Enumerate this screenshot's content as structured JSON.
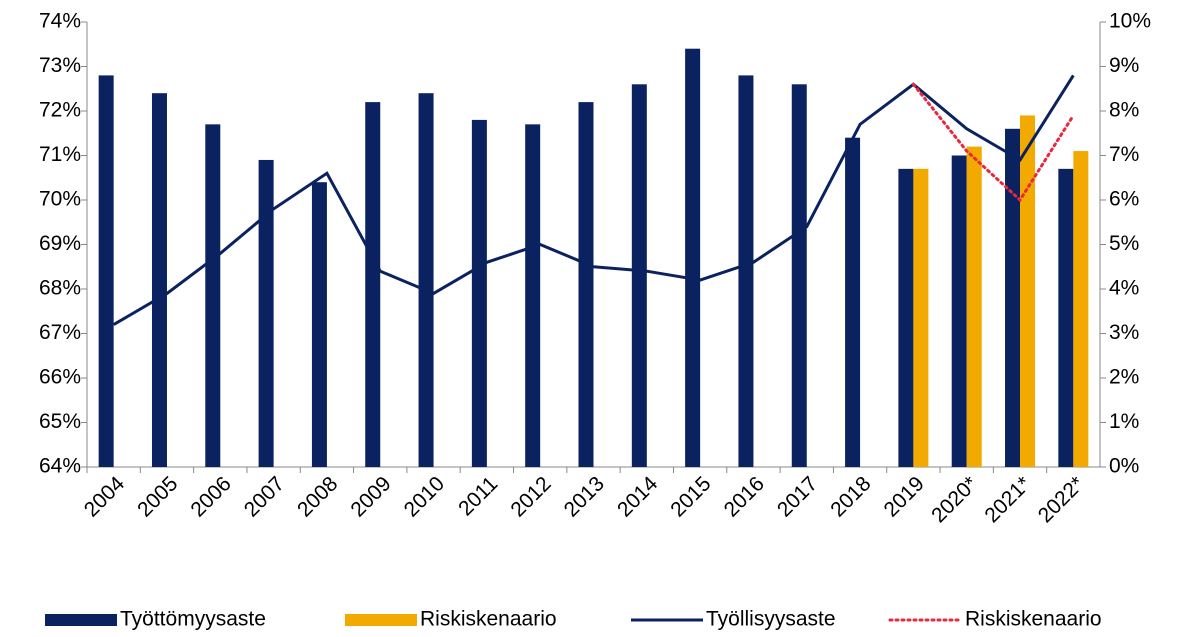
{
  "chart_data": {
    "type": "bar-line",
    "categories": [
      "2004",
      "2005",
      "2006",
      "2007",
      "2008",
      "2009",
      "2010",
      "2011",
      "2012",
      "2013",
      "2014",
      "2015",
      "2016",
      "2017",
      "2018",
      "2019",
      "2020*",
      "2021*",
      "2022*"
    ],
    "series": [
      {
        "name": "Työttömyysaste",
        "kind": "bar",
        "axis": "y2",
        "color": "#0b2260",
        "values": [
          8.8,
          8.4,
          7.7,
          6.9,
          6.4,
          8.2,
          8.4,
          7.8,
          7.7,
          8.2,
          8.6,
          9.4,
          8.8,
          8.6,
          7.4,
          6.7,
          7.0,
          7.6,
          6.7
        ]
      },
      {
        "name": "Riskiskenaario",
        "kind": "bar",
        "axis": "y2",
        "color": "#f2a900",
        "values": [
          null,
          null,
          null,
          null,
          null,
          null,
          null,
          null,
          null,
          null,
          null,
          null,
          null,
          null,
          null,
          6.7,
          7.2,
          7.9,
          7.1
        ]
      },
      {
        "name": "Työllisyysaste",
        "kind": "line",
        "color": "#0b2260",
        "values": [
          67.2,
          67.9,
          68.8,
          69.8,
          70.6,
          68.4,
          67.9,
          68.6,
          69.0,
          68.5,
          68.4,
          68.2,
          68.6,
          69.4,
          71.7,
          72.6,
          71.6,
          70.9,
          72.8
        ]
      },
      {
        "name": "Riskiskenaario",
        "kind": "dotted-line",
        "color": "#e8283c",
        "values": [
          null,
          null,
          null,
          null,
          null,
          null,
          null,
          null,
          null,
          null,
          null,
          null,
          null,
          null,
          null,
          72.6,
          71.1,
          70.0,
          71.9
        ]
      }
    ],
    "ylim": [
      64,
      74
    ],
    "yticks": [
      {
        "value": 64,
        "label": "64%"
      },
      {
        "value": 65,
        "label": "65%"
      },
      {
        "value": 66,
        "label": "66%"
      },
      {
        "value": 67,
        "label": "67%"
      },
      {
        "value": 68,
        "label": "68%"
      },
      {
        "value": 69,
        "label": "69%"
      },
      {
        "value": 70,
        "label": "70%"
      },
      {
        "value": 71,
        "label": "71%"
      },
      {
        "value": 72,
        "label": "72%"
      },
      {
        "value": 73,
        "label": "73%"
      },
      {
        "value": 74,
        "label": "74%"
      }
    ],
    "y2lim": [
      0,
      10
    ],
    "y2ticks": [
      {
        "value": 0,
        "label": "0%"
      },
      {
        "value": 1,
        "label": "1%"
      },
      {
        "value": 2,
        "label": "2%"
      },
      {
        "value": 3,
        "label": "3%"
      },
      {
        "value": 4,
        "label": "4%"
      },
      {
        "value": 5,
        "label": "5%"
      },
      {
        "value": 6,
        "label": "6%"
      },
      {
        "value": 7,
        "label": "7%"
      },
      {
        "value": 8,
        "label": "8%"
      },
      {
        "value": 9,
        "label": "9%"
      },
      {
        "value": 10,
        "label": "10%"
      }
    ],
    "legend": "bottom"
  }
}
